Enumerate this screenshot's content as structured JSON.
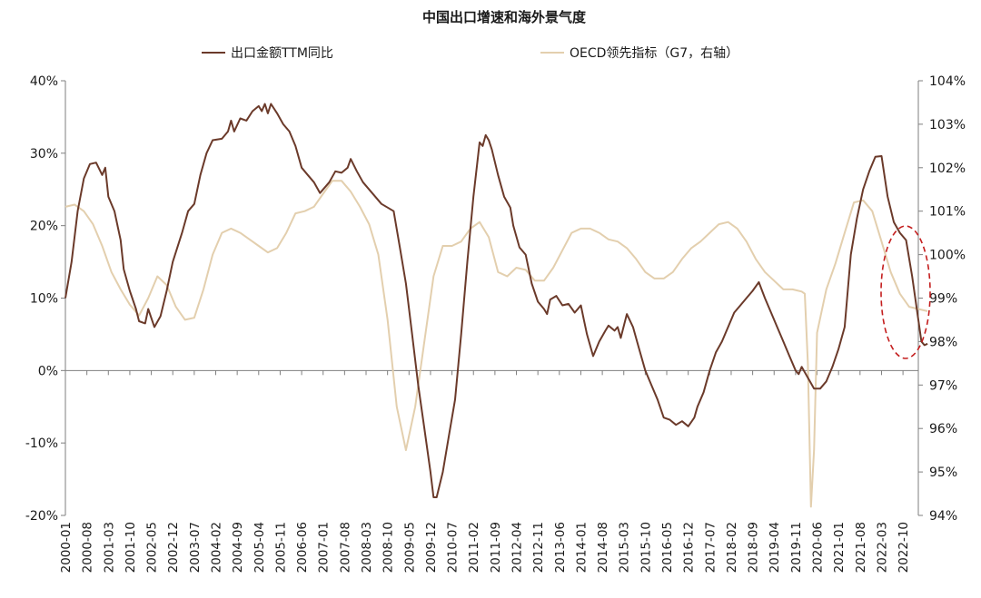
{
  "chart_data": {
    "type": "line",
    "title": "中国出口增速和海外景气度",
    "legend": {
      "placement": "top",
      "entries": [
        "出口金额TTM同比",
        "OECD领先指标（G7，右轴）"
      ]
    },
    "colors": {
      "export": "#6b3a2a",
      "oecd": "#e3cfae",
      "circle": "#c41e1e",
      "axis": "#7f7f7f"
    },
    "y_left": {
      "min": -20,
      "max": 40,
      "ticks": [
        "-20%",
        "-10%",
        "0%",
        "10%",
        "20%",
        "30%",
        "40%"
      ]
    },
    "y_right": {
      "min": 94,
      "max": 104,
      "ticks": [
        "94%",
        "95%",
        "96%",
        "97%",
        "98%",
        "99%",
        "100%",
        "101%",
        "102%",
        "103%",
        "104%"
      ]
    },
    "x_ticks": [
      "2000-01",
      "2000-08",
      "2001-03",
      "2001-10",
      "2002-05",
      "2002-12",
      "2003-07",
      "2004-02",
      "2004-09",
      "2005-04",
      "2005-11",
      "2006-06",
      "2007-01",
      "2007-08",
      "2008-03",
      "2008-10",
      "2009-05",
      "2009-12",
      "2010-07",
      "2011-02",
      "2011-09",
      "2012-04",
      "2012-11",
      "2013-06",
      "2014-01",
      "2014-08",
      "2015-03",
      "2015-10",
      "2016-05",
      "2016-12",
      "2017-07",
      "2018-02",
      "2018-09",
      "2019-04",
      "2019-11",
      "2020-06",
      "2021-01",
      "2021-08",
      "2022-03",
      "2022-10"
    ],
    "x_range": {
      "start": "2000-01",
      "end": "2023-03"
    },
    "series": [
      {
        "name": "出口金额TTM同比",
        "axis": "left",
        "points": [
          [
            "2000-01",
            10
          ],
          [
            "2000-03",
            15
          ],
          [
            "2000-05",
            22
          ],
          [
            "2000-07",
            26.5
          ],
          [
            "2000-09",
            28.5
          ],
          [
            "2000-11",
            28.7
          ],
          [
            "2001-01",
            27
          ],
          [
            "2001-02",
            28
          ],
          [
            "2001-03",
            24
          ],
          [
            "2001-05",
            22
          ],
          [
            "2001-07",
            18
          ],
          [
            "2001-08",
            14
          ],
          [
            "2001-10",
            11
          ],
          [
            "2001-12",
            8.5
          ],
          [
            "2002-01",
            6.8
          ],
          [
            "2002-03",
            6.5
          ],
          [
            "2002-04",
            8.5
          ],
          [
            "2002-06",
            6
          ],
          [
            "2002-08",
            7.5
          ],
          [
            "2002-10",
            11
          ],
          [
            "2002-12",
            15
          ],
          [
            "2003-03",
            19
          ],
          [
            "2003-05",
            22
          ],
          [
            "2003-07",
            23
          ],
          [
            "2003-09",
            27
          ],
          [
            "2003-11",
            30
          ],
          [
            "2004-01",
            31.8
          ],
          [
            "2004-04",
            32
          ],
          [
            "2004-06",
            33
          ],
          [
            "2004-07",
            34.5
          ],
          [
            "2004-08",
            33
          ],
          [
            "2004-10",
            34.8
          ],
          [
            "2004-12",
            34.5
          ],
          [
            "2005-02",
            35.8
          ],
          [
            "2005-04",
            36.5
          ],
          [
            "2005-05",
            35.8
          ],
          [
            "2005-06",
            36.8
          ],
          [
            "2005-07",
            35.5
          ],
          [
            "2005-08",
            36.8
          ],
          [
            "2005-10",
            35.5
          ],
          [
            "2005-12",
            34
          ],
          [
            "2006-02",
            33
          ],
          [
            "2006-04",
            31
          ],
          [
            "2006-06",
            28
          ],
          [
            "2006-08",
            27
          ],
          [
            "2006-10",
            26
          ],
          [
            "2006-12",
            24.5
          ],
          [
            "2007-02",
            25.5
          ],
          [
            "2007-03",
            26
          ],
          [
            "2007-05",
            27.5
          ],
          [
            "2007-07",
            27.3
          ],
          [
            "2007-09",
            28
          ],
          [
            "2007-10",
            29.2
          ],
          [
            "2007-12",
            27.5
          ],
          [
            "2008-02",
            26
          ],
          [
            "2008-04",
            25
          ],
          [
            "2008-06",
            24
          ],
          [
            "2008-08",
            23
          ],
          [
            "2008-10",
            22.5
          ],
          [
            "2008-12",
            22
          ],
          [
            "2009-02",
            17
          ],
          [
            "2009-04",
            12
          ],
          [
            "2009-06",
            5
          ],
          [
            "2009-08",
            -2
          ],
          [
            "2009-10",
            -8
          ],
          [
            "2009-12",
            -14
          ],
          [
            "2010-01",
            -17.5
          ],
          [
            "2010-02",
            -17.5
          ],
          [
            "2010-04",
            -14
          ],
          [
            "2010-06",
            -9
          ],
          [
            "2010-08",
            -4
          ],
          [
            "2010-10",
            5
          ],
          [
            "2010-12",
            15
          ],
          [
            "2011-02",
            24
          ],
          [
            "2011-04",
            31.5
          ],
          [
            "2011-05",
            31
          ],
          [
            "2011-06",
            32.5
          ],
          [
            "2011-07",
            31.8
          ],
          [
            "2011-08",
            30.5
          ],
          [
            "2011-10",
            27
          ],
          [
            "2011-12",
            24
          ],
          [
            "2012-02",
            22.5
          ],
          [
            "2012-03",
            20
          ],
          [
            "2012-05",
            17
          ],
          [
            "2012-07",
            16
          ],
          [
            "2012-09",
            12
          ],
          [
            "2012-11",
            9.5
          ],
          [
            "2013-01",
            8.5
          ],
          [
            "2013-02",
            7.8
          ],
          [
            "2013-03",
            9.8
          ],
          [
            "2013-05",
            10.3
          ],
          [
            "2013-07",
            9
          ],
          [
            "2013-09",
            9.2
          ],
          [
            "2013-11",
            8
          ],
          [
            "2014-01",
            9
          ],
          [
            "2014-02",
            7
          ],
          [
            "2014-03",
            5
          ],
          [
            "2014-05",
            2
          ],
          [
            "2014-07",
            4
          ],
          [
            "2014-09",
            5.5
          ],
          [
            "2014-10",
            6.2
          ],
          [
            "2014-12",
            5.5
          ],
          [
            "2015-01",
            6
          ],
          [
            "2015-02",
            4.5
          ],
          [
            "2015-04",
            7.8
          ],
          [
            "2015-06",
            6
          ],
          [
            "2015-08",
            3
          ],
          [
            "2015-10",
            0
          ],
          [
            "2015-12",
            -2
          ],
          [
            "2016-02",
            -4
          ],
          [
            "2016-04",
            -6.5
          ],
          [
            "2016-06",
            -6.8
          ],
          [
            "2016-08",
            -7.5
          ],
          [
            "2016-10",
            -7
          ],
          [
            "2016-12",
            -7.7
          ],
          [
            "2017-02",
            -6.5
          ],
          [
            "2017-03",
            -5
          ],
          [
            "2017-05",
            -3
          ],
          [
            "2017-07",
            0
          ],
          [
            "2017-09",
            2.5
          ],
          [
            "2017-11",
            4
          ],
          [
            "2018-01",
            6
          ],
          [
            "2018-03",
            8
          ],
          [
            "2018-05",
            9
          ],
          [
            "2018-07",
            10
          ],
          [
            "2018-09",
            11
          ],
          [
            "2018-11",
            12.2
          ],
          [
            "2019-01",
            10
          ],
          [
            "2019-03",
            8
          ],
          [
            "2019-05",
            6
          ],
          [
            "2019-07",
            4
          ],
          [
            "2019-09",
            2
          ],
          [
            "2019-11",
            0
          ],
          [
            "2019-12",
            -0.5
          ],
          [
            "2020-01",
            0.5
          ],
          [
            "2020-03",
            -1
          ],
          [
            "2020-05",
            -2.5
          ],
          [
            "2020-07",
            -2.5
          ],
          [
            "2020-09",
            -1.5
          ],
          [
            "2020-11",
            0.5
          ],
          [
            "2021-01",
            3
          ],
          [
            "2021-03",
            6
          ],
          [
            "2021-05",
            16
          ],
          [
            "2021-07",
            21
          ],
          [
            "2021-09",
            25
          ],
          [
            "2021-11",
            27.5
          ],
          [
            "2022-01",
            29.5
          ],
          [
            "2022-03",
            29.6
          ],
          [
            "2022-05",
            24
          ],
          [
            "2022-07",
            20.5
          ],
          [
            "2022-09",
            19
          ],
          [
            "2022-11",
            18
          ],
          [
            "2023-01",
            13
          ],
          [
            "2023-03",
            7
          ],
          [
            "2023-04",
            4
          ],
          [
            "2023-05",
            3.5
          ],
          [
            "2023-06",
            3.7
          ]
        ]
      },
      {
        "name": "OECD领先指标（G7，右轴）",
        "axis": "right",
        "points": [
          [
            "2000-01",
            101.1
          ],
          [
            "2000-04",
            101.15
          ],
          [
            "2000-07",
            101.0
          ],
          [
            "2000-10",
            100.7
          ],
          [
            "2001-01",
            100.2
          ],
          [
            "2001-04",
            99.6
          ],
          [
            "2001-07",
            99.2
          ],
          [
            "2001-10",
            98.85
          ],
          [
            "2002-01",
            98.6
          ],
          [
            "2002-04",
            99
          ],
          [
            "2002-07",
            99.5
          ],
          [
            "2002-10",
            99.3
          ],
          [
            "2003-01",
            98.8
          ],
          [
            "2003-04",
            98.5
          ],
          [
            "2003-07",
            98.55
          ],
          [
            "2003-10",
            99.2
          ],
          [
            "2004-01",
            100.0
          ],
          [
            "2004-04",
            100.5
          ],
          [
            "2004-07",
            100.6
          ],
          [
            "2004-10",
            100.5
          ],
          [
            "2005-01",
            100.35
          ],
          [
            "2005-04",
            100.2
          ],
          [
            "2005-07",
            100.05
          ],
          [
            "2005-10",
            100.15
          ],
          [
            "2006-01",
            100.5
          ],
          [
            "2006-04",
            100.95
          ],
          [
            "2006-07",
            101.0
          ],
          [
            "2006-10",
            101.1
          ],
          [
            "2007-01",
            101.4
          ],
          [
            "2007-04",
            101.7
          ],
          [
            "2007-07",
            101.7
          ],
          [
            "2007-10",
            101.45
          ],
          [
            "2008-01",
            101.1
          ],
          [
            "2008-04",
            100.7
          ],
          [
            "2008-07",
            100.0
          ],
          [
            "2008-10",
            98.5
          ],
          [
            "2009-01",
            96.5
          ],
          [
            "2009-04",
            95.5
          ],
          [
            "2009-07",
            96.5
          ],
          [
            "2009-10",
            98
          ],
          [
            "2010-01",
            99.5
          ],
          [
            "2010-04",
            100.2
          ],
          [
            "2010-07",
            100.2
          ],
          [
            "2010-10",
            100.3
          ],
          [
            "2011-01",
            100.6
          ],
          [
            "2011-04",
            100.75
          ],
          [
            "2011-07",
            100.4
          ],
          [
            "2011-10",
            99.6
          ],
          [
            "2012-01",
            99.5
          ],
          [
            "2012-04",
            99.7
          ],
          [
            "2012-07",
            99.65
          ],
          [
            "2012-10",
            99.4
          ],
          [
            "2013-01",
            99.4
          ],
          [
            "2013-04",
            99.7
          ],
          [
            "2013-07",
            100.1
          ],
          [
            "2013-10",
            100.5
          ],
          [
            "2014-01",
            100.6
          ],
          [
            "2014-04",
            100.6
          ],
          [
            "2014-07",
            100.5
          ],
          [
            "2014-10",
            100.35
          ],
          [
            "2015-01",
            100.3
          ],
          [
            "2015-04",
            100.15
          ],
          [
            "2015-07",
            99.9
          ],
          [
            "2015-10",
            99.6
          ],
          [
            "2016-01",
            99.45
          ],
          [
            "2016-04",
            99.45
          ],
          [
            "2016-07",
            99.6
          ],
          [
            "2016-10",
            99.9
          ],
          [
            "2017-01",
            100.15
          ],
          [
            "2017-04",
            100.3
          ],
          [
            "2017-07",
            100.5
          ],
          [
            "2017-10",
            100.7
          ],
          [
            "2018-01",
            100.75
          ],
          [
            "2018-04",
            100.6
          ],
          [
            "2018-07",
            100.3
          ],
          [
            "2018-10",
            99.9
          ],
          [
            "2019-01",
            99.6
          ],
          [
            "2019-04",
            99.4
          ],
          [
            "2019-07",
            99.2
          ],
          [
            "2019-10",
            99.2
          ],
          [
            "2020-01",
            99.15
          ],
          [
            "2020-02",
            99.1
          ],
          [
            "2020-03",
            97.5
          ],
          [
            "2020-04",
            94.2
          ],
          [
            "2020-05",
            95.5
          ],
          [
            "2020-06",
            98.2
          ],
          [
            "2020-09",
            99.2
          ],
          [
            "2020-12",
            99.8
          ],
          [
            "2021-03",
            100.5
          ],
          [
            "2021-06",
            101.2
          ],
          [
            "2021-09",
            101.25
          ],
          [
            "2021-12",
            101.0
          ],
          [
            "2022-03",
            100.3
          ],
          [
            "2022-06",
            99.6
          ],
          [
            "2022-09",
            99.1
          ],
          [
            "2022-12",
            98.8
          ],
          [
            "2023-03",
            98.75
          ],
          [
            "2023-06",
            98.7
          ]
        ]
      }
    ]
  }
}
